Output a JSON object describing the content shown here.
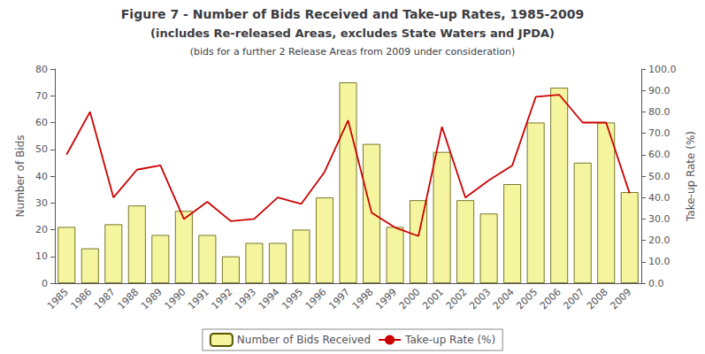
{
  "chart_data": {
    "type": "bar",
    "title": "Figure 7 - Number of Bids Received and Take-up Rates, 1985-2009",
    "subtitle": "(includes Re-released Areas, excludes State Waters and JPDA)",
    "annotations": [
      "(bids for a further 2 Release Areas from 2009 under consideration)"
    ],
    "categories": [
      "1985",
      "1986",
      "1987",
      "1988",
      "1989",
      "1990",
      "1991",
      "1992",
      "1993",
      "1994",
      "1995",
      "1996",
      "1997",
      "1998",
      "1999",
      "2000",
      "2001",
      "2002",
      "2003",
      "2004",
      "2005",
      "2006",
      "2007",
      "2008",
      "2009"
    ],
    "series": [
      {
        "name": "Number of Bids Received",
        "type": "bar",
        "color": "#f5f5a0",
        "values": [
          21,
          13,
          22,
          29,
          18,
          27,
          18,
          10,
          15,
          15,
          20,
          32,
          75,
          52,
          21,
          31,
          49,
          31,
          26,
          37,
          60,
          73,
          45,
          60,
          34
        ]
      },
      {
        "name": "Take-up Rate (%)",
        "type": "line",
        "color": "#cc0000",
        "axis": "y2",
        "values": [
          60,
          80,
          40,
          53,
          55,
          30,
          38,
          29,
          30,
          40,
          37,
          52,
          76,
          33,
          26,
          22,
          73,
          40,
          48,
          55,
          87,
          88,
          75,
          75,
          42
        ]
      }
    ],
    "ylabel": "Number of Bids",
    "y2label": "Take-up Rate (%)",
    "ylim": [
      0,
      80
    ],
    "yticks": [
      0,
      10,
      20,
      30,
      40,
      50,
      60,
      70,
      80
    ],
    "y2lim": [
      0.0,
      100.0
    ],
    "y2ticks": [
      {
        "value": 0,
        "label": "0.0"
      },
      {
        "value": 10,
        "label": "10.0"
      },
      {
        "value": 20,
        "label": "20.0"
      },
      {
        "value": 30,
        "label": "30.0"
      },
      {
        "value": 40,
        "label": "40.0"
      },
      {
        "value": 50,
        "label": "50.0"
      },
      {
        "value": 60,
        "label": "60.0"
      },
      {
        "value": 70,
        "label": "70.0"
      },
      {
        "value": 80,
        "label": "80.0"
      },
      {
        "value": 90,
        "label": "90.0"
      },
      {
        "value": 100,
        "label": "100.0"
      }
    ],
    "grid": false,
    "legend": "bottom"
  }
}
